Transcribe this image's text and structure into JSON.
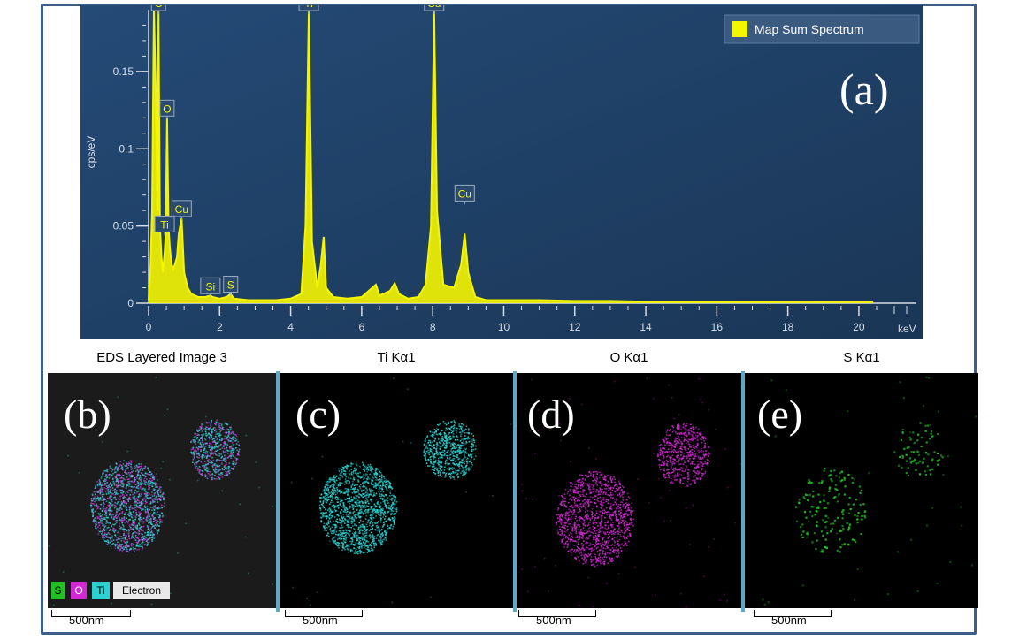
{
  "chart_data": {
    "type": "line",
    "title": "",
    "xlabel": "keV",
    "ylabel": "cps/eV",
    "xlim": [
      0,
      20.5
    ],
    "ylim": [
      0,
      0.19
    ],
    "x_ticks": [
      "0",
      "2",
      "4",
      "6",
      "8",
      "10",
      "12",
      "14",
      "16",
      "18",
      "20"
    ],
    "y_ticks": [
      "0",
      "0.05",
      "0.1",
      "0.15"
    ],
    "legend": {
      "label": "Map Sum Spectrum",
      "placement": "top-right",
      "color": "#f5f500"
    },
    "panel_label": "(a)",
    "series": [
      {
        "name": "Map Sum Spectrum",
        "x": [
          0,
          0.05,
          0.1,
          0.15,
          0.2,
          0.25,
          0.28,
          0.32,
          0.36,
          0.4,
          0.45,
          0.48,
          0.52,
          0.56,
          0.6,
          0.65,
          0.7,
          0.8,
          0.85,
          0.93,
          1.0,
          1.1,
          1.2,
          1.4,
          1.6,
          1.74,
          1.8,
          2.0,
          2.2,
          2.31,
          2.4,
          2.8,
          3.2,
          3.6,
          4.0,
          4.3,
          4.42,
          4.51,
          4.6,
          4.75,
          4.85,
          4.93,
          5.0,
          5.2,
          5.6,
          6.0,
          6.3,
          6.4,
          6.5,
          6.8,
          6.93,
          7.05,
          7.3,
          7.6,
          7.8,
          7.95,
          8.04,
          8.12,
          8.3,
          8.6,
          8.8,
          8.9,
          9.0,
          9.2,
          9.5,
          10,
          11,
          12,
          13,
          14,
          15,
          16,
          17,
          18,
          19,
          20,
          20.4
        ],
        "y": [
          0.002,
          0.02,
          0.06,
          0.19,
          0.14,
          0.06,
          0.19,
          0.05,
          0.03,
          0.02,
          0.033,
          0.045,
          0.12,
          0.05,
          0.035,
          0.025,
          0.022,
          0.03,
          0.045,
          0.055,
          0.02,
          0.01,
          0.006,
          0.004,
          0.004,
          0.005,
          0.004,
          0.003,
          0.004,
          0.006,
          0.003,
          0.002,
          0.002,
          0.002,
          0.003,
          0.006,
          0.05,
          0.19,
          0.04,
          0.01,
          0.025,
          0.043,
          0.01,
          0.004,
          0.003,
          0.004,
          0.01,
          0.012,
          0.005,
          0.008,
          0.013,
          0.006,
          0.003,
          0.004,
          0.012,
          0.05,
          0.19,
          0.06,
          0.012,
          0.01,
          0.025,
          0.045,
          0.02,
          0.004,
          0.002,
          0.002,
          0.002,
          0.0015,
          0.0015,
          0.001,
          0.001,
          0.001,
          0.001,
          0.001,
          0.001,
          0.001,
          0.001
        ]
      }
    ],
    "annotations": [
      {
        "label": "C",
        "x": 0.28,
        "y": 0.19
      },
      {
        "label": "O",
        "x": 0.52,
        "y": 0.12
      },
      {
        "label": "Cu",
        "x": 0.93,
        "y": 0.055
      },
      {
        "label": "Ti",
        "x": 0.45,
        "y": 0.045
      },
      {
        "label": "Si",
        "x": 1.74,
        "y": 0.005
      },
      {
        "label": "S",
        "x": 2.31,
        "y": 0.006
      },
      {
        "label": "Ti",
        "x": 4.51,
        "y": 0.19
      },
      {
        "label": "Cu",
        "x": 8.04,
        "y": 0.19
      },
      {
        "label": "Cu",
        "x": 8.9,
        "y": 0.065
      }
    ]
  },
  "panels": [
    {
      "caption": "EDS Layered Image 3",
      "letter": "(b)",
      "scale": "500nm"
    },
    {
      "caption": "Ti Kα1",
      "letter": "(c)",
      "scale": "500nm"
    },
    {
      "caption": "O Kα1",
      "letter": "(d)",
      "scale": "500nm"
    },
    {
      "caption": "S Kα1",
      "letter": "(e)",
      "scale": "500nm"
    }
  ],
  "legend_chips": [
    "S",
    "O",
    "Ti",
    "Electron"
  ],
  "colors": {
    "plot_background": "#1f4066",
    "spectrum": "#f5f500",
    "axis": "#d7dde6",
    "ti_map": "#2bd0d0",
    "o_map": "#d428d4",
    "s_map": "#22c022",
    "divider": "#5ea8c8"
  }
}
